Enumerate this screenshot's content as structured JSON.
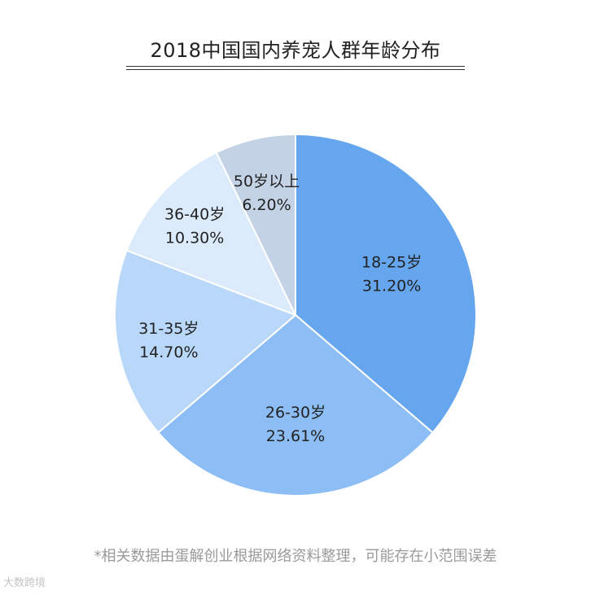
{
  "chart_data": {
    "type": "pie",
    "title": "2018中国国内养宠人群年龄分布",
    "slices": [
      {
        "label": "18-25岁",
        "value_label": "31.20%",
        "value": 31.2,
        "color": "#65A6EF"
      },
      {
        "label": "26-30岁",
        "value_label": "23.61%",
        "value": 23.61,
        "color": "#8CBDF5"
      },
      {
        "label": "31-35岁",
        "value_label": "14.70%",
        "value": 14.7,
        "color": "#B8D7F9"
      },
      {
        "label": "36-40岁",
        "value_label": "10.30%",
        "value": 10.3,
        "color": "#DBEBFC"
      },
      {
        "label": "50岁以上",
        "value_label": "6.20%",
        "value": 6.2,
        "color": "#C4D2E6"
      }
    ],
    "start": "top",
    "direction": "clockwise"
  },
  "footnote": "*相关数据由蛋解创业根据网络资料整理，可能存在小范围误差",
  "watermark": "大数跨境"
}
